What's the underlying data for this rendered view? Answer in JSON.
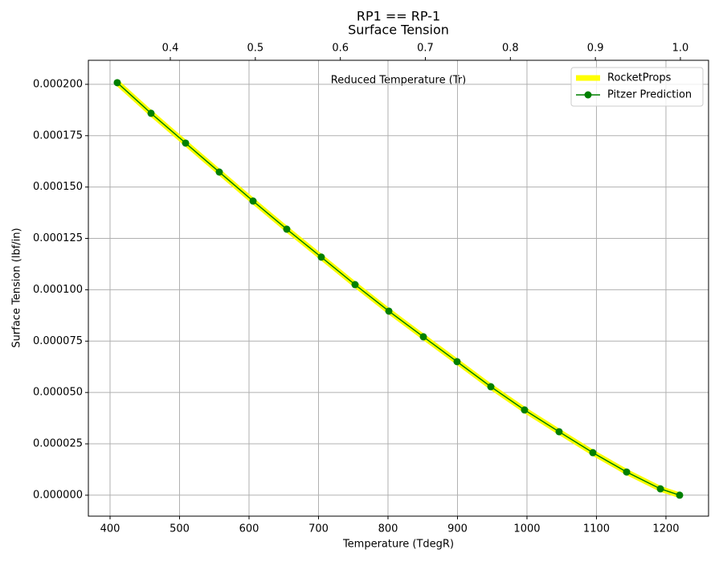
{
  "chart_data": {
    "type": "line",
    "title": "RP1 == RP-1",
    "subtitle": "Surface Tension",
    "x_label": "Temperature (TdegR)",
    "y_label": "Surface Tension (lbf/in)",
    "x2_label": "Reduced Temperature (Tr)",
    "xlim": [
      368.8,
      1261.3
    ],
    "xticks": [
      400,
      500,
      600,
      700,
      800,
      900,
      1000,
      1100,
      1200
    ],
    "x2lim": [
      0.3036,
      1.0331
    ],
    "x2ticks": [
      0.4,
      0.5,
      0.6,
      0.7,
      0.8,
      0.9,
      {
        "value": 1.0,
        "label": "1.0"
      }
    ],
    "ylim": [
      -1.02e-05,
      0.0002117
    ],
    "yticks": [
      {
        "value": 0,
        "label": "0.000000"
      },
      {
        "value": 2.5e-05,
        "label": "0.000025"
      },
      {
        "value": 5e-05,
        "label": "0.000050"
      },
      {
        "value": 7.5e-05,
        "label": "0.000075"
      },
      {
        "value": 0.0001,
        "label": "0.000100"
      },
      {
        "value": 0.000125,
        "label": "0.000125"
      },
      {
        "value": 0.00015,
        "label": "0.000150"
      },
      {
        "value": 0.000175,
        "label": "0.000175"
      },
      {
        "value": 0.0002,
        "label": "0.000200"
      }
    ],
    "grid": true,
    "legend": "upper right",
    "series": [
      {
        "name": "RocketProps",
        "color": "#ffff00",
        "line_width": 7,
        "marker": false,
        "x": [
          410.4,
          459,
          508.7,
          557.2,
          605.8,
          654.3,
          704,
          752.6,
          801.2,
          850.9,
          899.4,
          948,
          996.5,
          1046.2,
          1094.8,
          1143.4,
          1192,
          1219.7
        ],
        "values": [
          0.0002008,
          0.0001859,
          0.0001714,
          0.0001573,
          0.0001432,
          0.0001295,
          0.0001159,
          0.0001025,
          8.96e-05,
          7.71e-05,
          6.5e-05,
          5.28e-05,
          4.15e-05,
          3.09e-05,
          2.07e-05,
          1.13e-05,
          3.1e-06,
          0
        ]
      },
      {
        "name": "Pitzer Prediction",
        "color": "#008000",
        "line_width": 1.5,
        "marker": true,
        "x": [
          410.4,
          459,
          508.7,
          557.2,
          605.8,
          654.3,
          704,
          752.6,
          801.2,
          850.9,
          899.4,
          948,
          996.5,
          1046.2,
          1094.8,
          1143.4,
          1192,
          1219.7
        ],
        "values": [
          0.0002008,
          0.0001859,
          0.0001714,
          0.0001573,
          0.0001432,
          0.0001295,
          0.0001159,
          0.0001025,
          8.96e-05,
          7.71e-05,
          6.5e-05,
          5.28e-05,
          4.15e-05,
          3.09e-05,
          2.07e-05,
          1.13e-05,
          3.1e-06,
          0
        ]
      }
    ]
  }
}
